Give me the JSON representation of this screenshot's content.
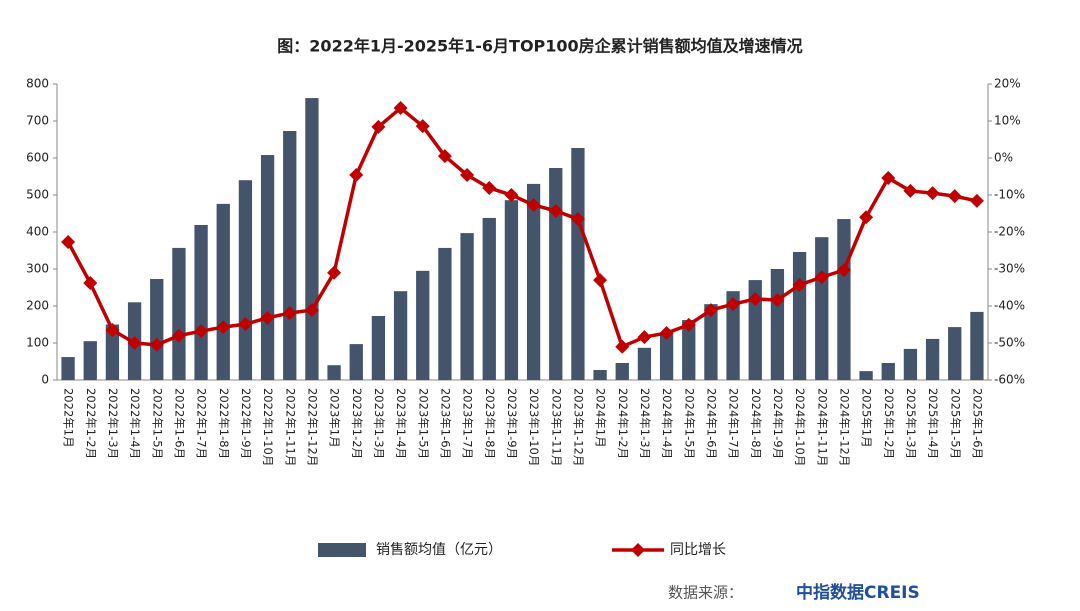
{
  "chart_data": {
    "type": "bar_line",
    "title": "图：2022年1月-2025年1-6月TOP100房企累计销售额均值及增速情况",
    "categories": [
      "2022年1月",
      "2022年1-2月",
      "2022年1-3月",
      "2022年1-4月",
      "2022年1-5月",
      "2022年1-6月",
      "2022年1-7月",
      "2022年1-8月",
      "2022年1-9月",
      "2022年1-10月",
      "2022年1-11月",
      "2022年1-12月",
      "2023年1月",
      "2023年1-2月",
      "2023年1-3月",
      "2023年1-4月",
      "2023年1-5月",
      "2023年1-6月",
      "2023年1-7月",
      "2023年1-8月",
      "2023年1-9月",
      "2023年1-10月",
      "2023年1-11月",
      "2023年1-12月",
      "2024年1月",
      "2024年1-2月",
      "2024年1-3月",
      "2024年1-4月",
      "2024年1-5月",
      "2024年1-6月",
      "2024年1-7月",
      "2024年1-8月",
      "2024年1-9月",
      "2024年1-10月",
      "2024年1-11月",
      "2024年1-12月",
      "2025年1月",
      "2025年1-2月",
      "2025年1-3月",
      "2025年1-4月",
      "2025年1-5月",
      "2025年1-6月"
    ],
    "series": [
      {
        "name": "销售额均值（亿元）",
        "kind": "bar",
        "color": "#44546a",
        "values": [
          62,
          105,
          150,
          210,
          273,
          357,
          419,
          476,
          540,
          608,
          673,
          762,
          40,
          97,
          173,
          240,
          295,
          357,
          397,
          438,
          486,
          530,
          573,
          627,
          27,
          46,
          87,
          127,
          162,
          205,
          240,
          270,
          300,
          346,
          386,
          435,
          24,
          46,
          84,
          111,
          143,
          184
        ]
      },
      {
        "name": "同比增长",
        "kind": "line",
        "axis": "y2",
        "color": "#c00000",
        "values": [
          -22.7,
          -33.8,
          -46.5,
          -50,
          -50.5,
          -48,
          -46.8,
          -45.7,
          -44.9,
          -43.2,
          -41.9,
          -41.1,
          -31,
          -4.6,
          8.4,
          13.5,
          8.6,
          0.5,
          -4.6,
          -8.1,
          -10,
          -12.7,
          -14.3,
          -16.5,
          -33,
          -51,
          -48.4,
          -47.3,
          -45.1,
          -41.1,
          -39.5,
          -38.1,
          -38.4,
          -34.3,
          -32.2,
          -30.3,
          -16,
          -5.4,
          -8.9,
          -9.5,
          -10.3,
          -11.6
        ]
      }
    ],
    "ylim": [
      0,
      800
    ],
    "yticks": [
      0,
      100,
      200,
      300,
      400,
      500,
      600,
      700,
      800
    ],
    "y2lim": [
      -60,
      20
    ],
    "y2ticks": [
      {
        "value": -60,
        "label": "-60%"
      },
      {
        "value": -50,
        "label": "-50%"
      },
      {
        "value": -40,
        "label": "-40%"
      },
      {
        "value": -30,
        "label": "-30%"
      },
      {
        "value": -20,
        "label": "-20%"
      },
      {
        "value": -10,
        "label": "-10%"
      },
      {
        "value": 0,
        "label": "0%"
      },
      {
        "value": 10,
        "label": "10%"
      },
      {
        "value": 20,
        "label": "20%"
      }
    ],
    "source_label": "数据来源：",
    "source": "中指数据CREIS"
  }
}
